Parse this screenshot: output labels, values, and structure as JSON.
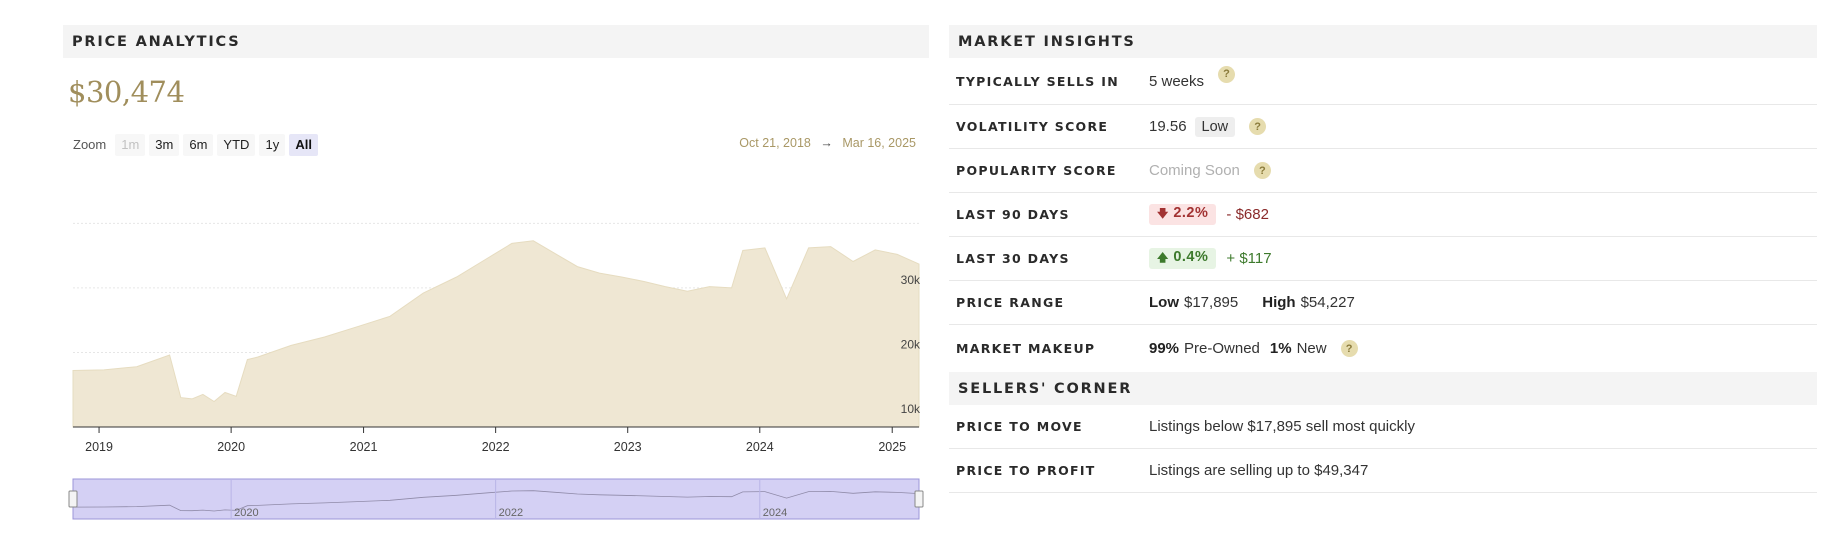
{
  "analytics": {
    "title": "PRICE ANALYTICS",
    "price": "$30,474",
    "zoom_label": "Zoom",
    "zoom_options": [
      "1m",
      "3m",
      "6m",
      "YTD",
      "1y",
      "All"
    ],
    "zoom_selected": "All",
    "zoom_disabled": [
      "1m"
    ],
    "range_start": "Oct 21, 2018",
    "range_arrow": "→",
    "range_end": "Mar 16, 2025"
  },
  "chart_data": {
    "type": "area",
    "color": "#efe7d3",
    "line_color": "#e8dfc3",
    "navigator_color": "#d4d0f4",
    "xlim": [
      "2018-10-21",
      "2025-03-16"
    ],
    "ylim": [
      10000,
      34000
    ],
    "y_ticks": [
      10000,
      20000,
      30000
    ],
    "y_tick_labels": [
      "10k",
      "20k",
      "30k"
    ],
    "x_ticks": [
      "2019",
      "2020",
      "2021",
      "2022",
      "2023",
      "2024",
      "2025"
    ],
    "navigator_labels": [
      "2020",
      "2022",
      "2024"
    ],
    "x": [
      "2018-10",
      "2019-01",
      "2019-04",
      "2019-07",
      "2019-08",
      "2019-09",
      "2019-10",
      "2019-11",
      "2019-12",
      "2020-01",
      "2020-02",
      "2020-03",
      "2020-06",
      "2020-09",
      "2020-12",
      "2021-03",
      "2021-06",
      "2021-09",
      "2021-12",
      "2022-02",
      "2022-04",
      "2022-06",
      "2022-08",
      "2022-10",
      "2022-12",
      "2023-02",
      "2023-04",
      "2023-06",
      "2023-08",
      "2023-10",
      "2023-11",
      "2024-01",
      "2024-03",
      "2024-05",
      "2024-07",
      "2024-09",
      "2024-11",
      "2025-01",
      "2025-03"
    ],
    "values": [
      17200,
      17300,
      17800,
      19600,
      13000,
      12800,
      13500,
      12400,
      13800,
      13200,
      18900,
      19300,
      21100,
      22400,
      24000,
      25600,
      29200,
      31700,
      34800,
      36900,
      37300,
      35300,
      33300,
      32300,
      31700,
      31000,
      30200,
      29500,
      30200,
      30000,
      35800,
      36200,
      28300,
      36200,
      36400,
      34100,
      35900,
      35200,
      33700
    ]
  },
  "insights": {
    "title": "MARKET INSIGHTS",
    "sells_in_label": "TYPICALLY SELLS IN",
    "sells_in_value": "5 weeks",
    "volatility_label": "VOLATILITY SCORE",
    "volatility_value": "19.56",
    "volatility_level": "Low",
    "popularity_label": "POPULARITY SCORE",
    "popularity_value": "Coming Soon",
    "last90_label": "LAST 90 DAYS",
    "last90_pct": "2.2%",
    "last90_delta": "- $682",
    "last30_label": "LAST 30 DAYS",
    "last30_pct": "0.4%",
    "last30_delta": "+ $117",
    "range_label": "PRICE RANGE",
    "range_low_label": "Low",
    "range_low_value": "$17,895",
    "range_high_label": "High",
    "range_high_value": "$54,227",
    "makeup_label": "MARKET MAKEUP",
    "makeup_preowned_pct": "99%",
    "makeup_preowned_label": "Pre-Owned",
    "makeup_new_pct": "1%",
    "makeup_new_label": "New",
    "help_glyph": "?"
  },
  "sellers": {
    "title": "SELLERS' CORNER",
    "move_label": "PRICE TO MOVE",
    "move_value": "Listings below $17,895 sell most quickly",
    "profit_label": "PRICE TO PROFIT",
    "profit_value": "Listings are selling up to $49,347"
  }
}
